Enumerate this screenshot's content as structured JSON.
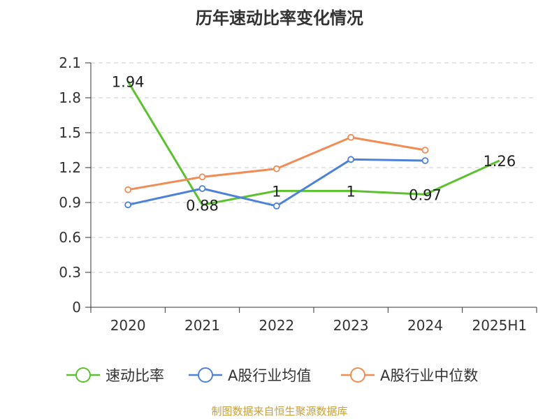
{
  "chart_data": {
    "type": "line",
    "title": "历年速动比率变化情况",
    "categories": [
      "2020",
      "2021",
      "2022",
      "2023",
      "2024",
      "2025H1"
    ],
    "ylim": [
      0,
      2.1
    ],
    "yticks": [
      "0",
      "0.3",
      "0.6",
      "0.9",
      "1.2",
      "1.5",
      "1.8",
      "2.1"
    ],
    "grid": true,
    "legend_position": "bottom",
    "series": [
      {
        "name": "速动比率",
        "color": "#5cc12e",
        "values": [
          1.94,
          0.88,
          1.0,
          1.0,
          0.97,
          1.26
        ],
        "labels": [
          "1.94",
          "0.88",
          "1",
          "1",
          "0.97",
          "1.26"
        ]
      },
      {
        "name": "A股行业均值",
        "color": "#4e82d8",
        "values": [
          0.88,
          1.02,
          0.87,
          1.27,
          1.26,
          null
        ]
      },
      {
        "name": "A股行业中位数",
        "color": "#f28c55",
        "values": [
          1.01,
          1.12,
          1.19,
          1.46,
          1.35,
          null
        ]
      }
    ]
  },
  "source": "制图数据来自恒生聚源数据库"
}
